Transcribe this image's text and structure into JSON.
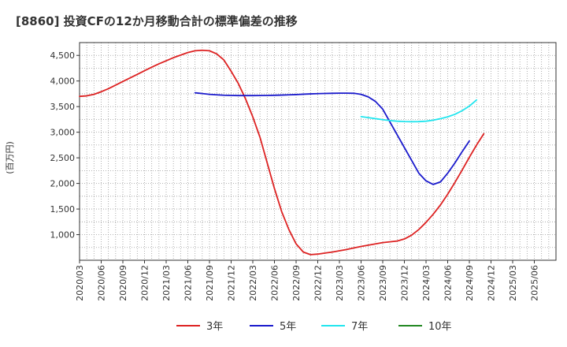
{
  "chart_data": {
    "type": "line",
    "title": "[8860]  投資CFの12か月移動合計の標準偏差の推移",
    "ylabel": "(百万円)",
    "xlabel": "",
    "ylim": [
      500,
      4750
    ],
    "yticks": [
      1000,
      1500,
      2000,
      2500,
      3000,
      3500,
      4000,
      4500
    ],
    "ytick_labels": [
      "1,000",
      "1,500",
      "2,000",
      "2,500",
      "3,000",
      "3,500",
      "4,000",
      "4,500"
    ],
    "xlim": [
      0,
      66
    ],
    "xticks": [
      {
        "i": 0,
        "label": "2020/03"
      },
      {
        "i": 3,
        "label": "2020/06"
      },
      {
        "i": 6,
        "label": "2020/09"
      },
      {
        "i": 9,
        "label": "2020/12"
      },
      {
        "i": 12,
        "label": "2021/03"
      },
      {
        "i": 15,
        "label": "2021/06"
      },
      {
        "i": 18,
        "label": "2021/09"
      },
      {
        "i": 21,
        "label": "2021/12"
      },
      {
        "i": 24,
        "label": "2022/03"
      },
      {
        "i": 27,
        "label": "2022/06"
      },
      {
        "i": 30,
        "label": "2022/09"
      },
      {
        "i": 33,
        "label": "2022/12"
      },
      {
        "i": 36,
        "label": "2023/03"
      },
      {
        "i": 39,
        "label": "2023/06"
      },
      {
        "i": 42,
        "label": "2023/09"
      },
      {
        "i": 45,
        "label": "2023/12"
      },
      {
        "i": 48,
        "label": "2024/03"
      },
      {
        "i": 51,
        "label": "2024/06"
      },
      {
        "i": 54,
        "label": "2024/09"
      },
      {
        "i": 57,
        "label": "2024/12"
      },
      {
        "i": 60,
        "label": "2025/03"
      },
      {
        "i": 63,
        "label": "2025/06"
      }
    ],
    "grid": true,
    "legend_position": "bottom",
    "series": [
      {
        "name": "3年",
        "color": "#dd2222",
        "points": [
          [
            0,
            3700
          ],
          [
            1,
            3710
          ],
          [
            2,
            3740
          ],
          [
            3,
            3790
          ],
          [
            4,
            3850
          ],
          [
            5,
            3920
          ],
          [
            6,
            3990
          ],
          [
            7,
            4060
          ],
          [
            8,
            4130
          ],
          [
            9,
            4200
          ],
          [
            10,
            4270
          ],
          [
            11,
            4335
          ],
          [
            12,
            4395
          ],
          [
            13,
            4455
          ],
          [
            14,
            4505
          ],
          [
            15,
            4555
          ],
          [
            16,
            4590
          ],
          [
            17,
            4600
          ],
          [
            18,
            4590
          ],
          [
            19,
            4530
          ],
          [
            20,
            4410
          ],
          [
            21,
            4190
          ],
          [
            22,
            3950
          ],
          [
            23,
            3650
          ],
          [
            24,
            3300
          ],
          [
            25,
            2900
          ],
          [
            26,
            2400
          ],
          [
            27,
            1900
          ],
          [
            28,
            1450
          ],
          [
            29,
            1100
          ],
          [
            30,
            820
          ],
          [
            31,
            660
          ],
          [
            32,
            610
          ],
          [
            33,
            620
          ],
          [
            34,
            640
          ],
          [
            35,
            660
          ],
          [
            36,
            685
          ],
          [
            37,
            710
          ],
          [
            38,
            740
          ],
          [
            39,
            770
          ],
          [
            40,
            795
          ],
          [
            41,
            820
          ],
          [
            42,
            845
          ],
          [
            43,
            860
          ],
          [
            44,
            875
          ],
          [
            45,
            915
          ],
          [
            46,
            990
          ],
          [
            47,
            1100
          ],
          [
            48,
            1240
          ],
          [
            49,
            1400
          ],
          [
            50,
            1580
          ],
          [
            51,
            1790
          ],
          [
            52,
            2020
          ],
          [
            53,
            2260
          ],
          [
            54,
            2510
          ],
          [
            55,
            2750
          ],
          [
            56,
            2970
          ]
        ]
      },
      {
        "name": "5年",
        "color": "#1a1acc",
        "points": [
          [
            16,
            3770
          ],
          [
            17,
            3755
          ],
          [
            18,
            3740
          ],
          [
            19,
            3730
          ],
          [
            20,
            3722
          ],
          [
            21,
            3718
          ],
          [
            22,
            3715
          ],
          [
            23,
            3715
          ],
          [
            24,
            3715
          ],
          [
            25,
            3716
          ],
          [
            26,
            3718
          ],
          [
            27,
            3721
          ],
          [
            28,
            3725
          ],
          [
            29,
            3730
          ],
          [
            30,
            3735
          ],
          [
            31,
            3742
          ],
          [
            32,
            3748
          ],
          [
            33,
            3753
          ],
          [
            34,
            3757
          ],
          [
            35,
            3760
          ],
          [
            36,
            3762
          ],
          [
            37,
            3763
          ],
          [
            38,
            3760
          ],
          [
            39,
            3740
          ],
          [
            40,
            3690
          ],
          [
            41,
            3600
          ],
          [
            42,
            3450
          ],
          [
            43,
            3200
          ],
          [
            44,
            2950
          ],
          [
            45,
            2700
          ],
          [
            46,
            2450
          ],
          [
            47,
            2200
          ],
          [
            48,
            2050
          ],
          [
            49,
            1980
          ],
          [
            50,
            2030
          ],
          [
            51,
            2200
          ],
          [
            52,
            2400
          ],
          [
            53,
            2620
          ],
          [
            54,
            2830
          ]
        ]
      },
      {
        "name": "7年",
        "color": "#22e5ee",
        "points": [
          [
            39,
            3305
          ],
          [
            40,
            3285
          ],
          [
            41,
            3265
          ],
          [
            42,
            3245
          ],
          [
            43,
            3228
          ],
          [
            44,
            3215
          ],
          [
            45,
            3208
          ],
          [
            46,
            3205
          ],
          [
            47,
            3207
          ],
          [
            48,
            3215
          ],
          [
            49,
            3235
          ],
          [
            50,
            3265
          ],
          [
            51,
            3300
          ],
          [
            52,
            3350
          ],
          [
            53,
            3420
          ],
          [
            54,
            3510
          ],
          [
            55,
            3630
          ]
        ]
      },
      {
        "name": "10年",
        "color": "#228822",
        "points": []
      }
    ]
  }
}
